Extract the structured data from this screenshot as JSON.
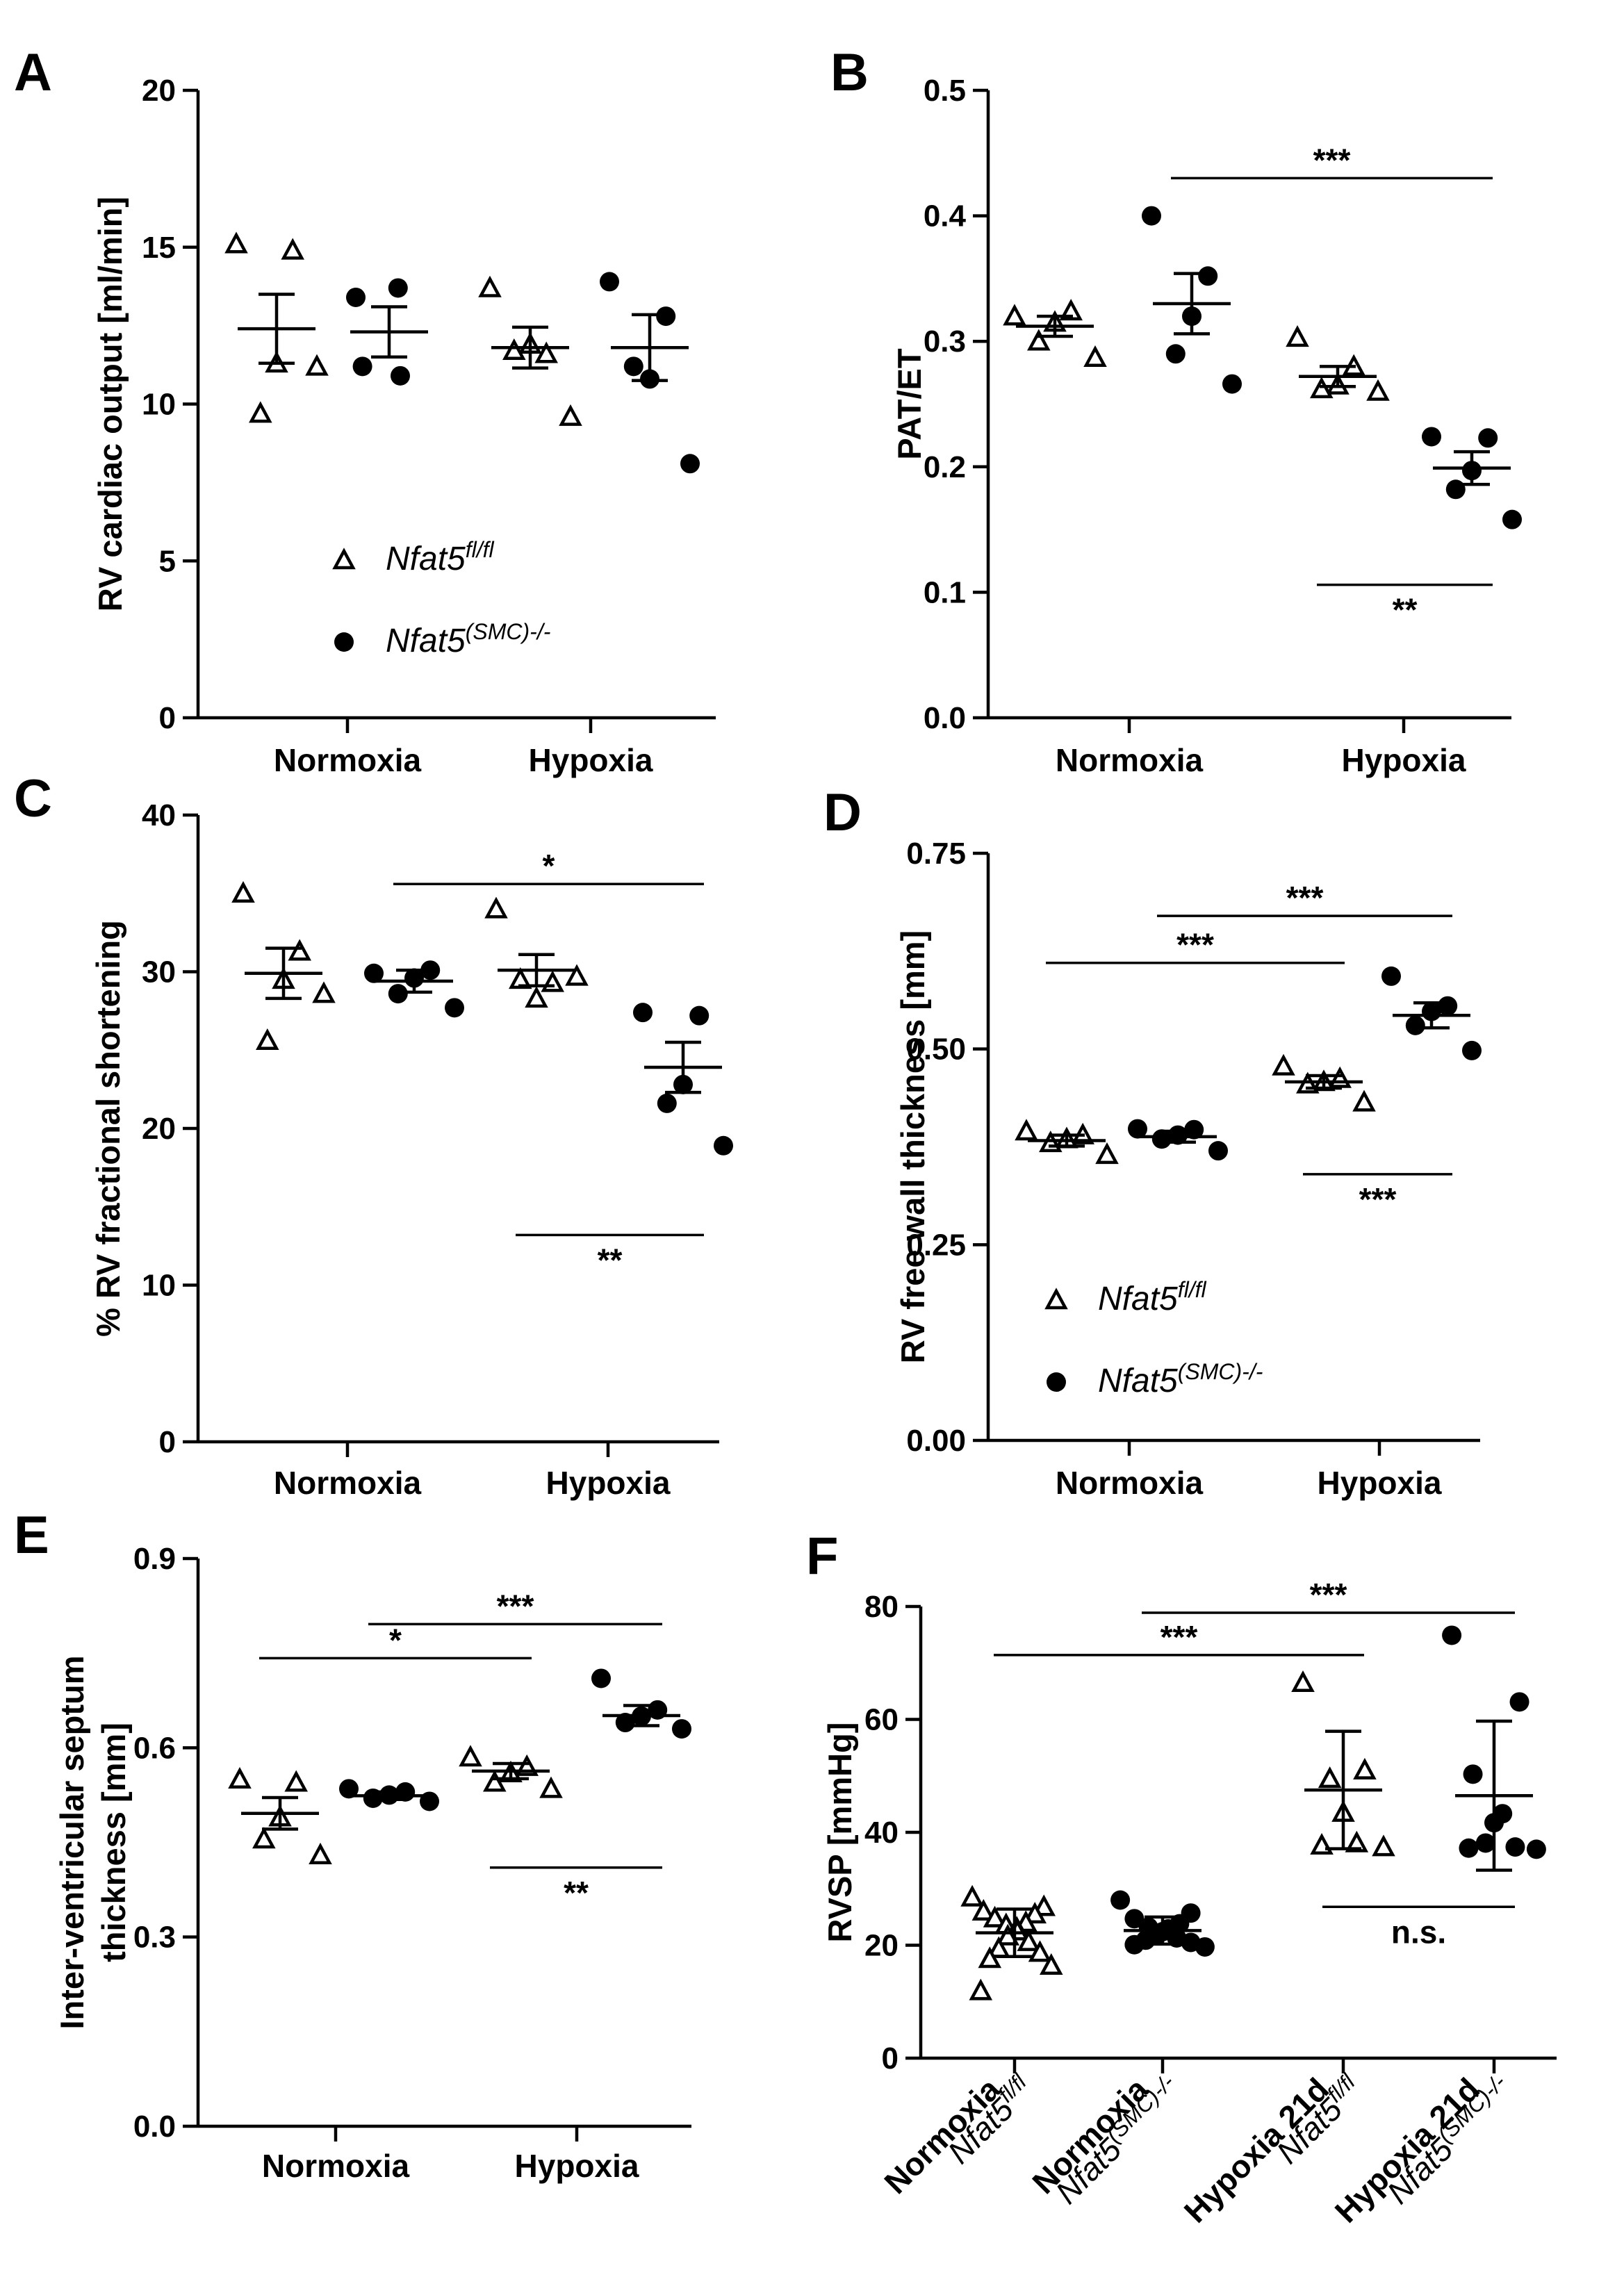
{
  "legend": {
    "group_a": "Nfat5",
    "group_a_sup": "fl/fl",
    "group_b": "Nfat5",
    "group_b_sup": "(SMC)-/-"
  },
  "chart_data": [
    {
      "type": "scatter",
      "panel": "A",
      "ylabel": "RV cardiac output [ml/min]",
      "ylim": [
        0,
        20
      ],
      "yticks": [
        "0",
        "5",
        "10",
        "15",
        "20"
      ],
      "categories": [
        "Normoxia",
        "Hypoxia"
      ],
      "groups": [
        {
          "name": "Nfat5 fl/fl",
          "condition": "Normoxia",
          "mean": 12.4,
          "sem": 1.1,
          "points": [
            15.1,
            14.9,
            11.3,
            9.7,
            11.2
          ]
        },
        {
          "name": "Nfat5 (SMC)-/-",
          "condition": "Normoxia",
          "mean": 12.3,
          "sem": 0.8,
          "points": [
            13.4,
            13.7,
            10.9,
            11.2
          ]
        },
        {
          "name": "Nfat5 fl/fl",
          "condition": "Hypoxia",
          "mean": 11.8,
          "sem": 0.65,
          "points": [
            13.7,
            11.6,
            11.9,
            11.7,
            9.6
          ]
        },
        {
          "name": "Nfat5 (SMC)-/-",
          "condition": "Hypoxia",
          "mean": 11.8,
          "sem": 1.05,
          "points": [
            13.9,
            12.8,
            10.8,
            11.2,
            8.1
          ]
        }
      ],
      "significance": []
    },
    {
      "type": "scatter",
      "panel": "B",
      "ylabel": "PAT/ET",
      "ylim": [
        0,
        0.5
      ],
      "yticks": [
        "0.0",
        "0.1",
        "0.2",
        "0.3",
        "0.4",
        "0.5"
      ],
      "categories": [
        "Normoxia",
        "Hypoxia"
      ],
      "groups": [
        {
          "name": "Nfat5 fl/fl",
          "condition": "Normoxia",
          "mean": 0.312,
          "sem": 0.008,
          "points": [
            0.32,
            0.324,
            0.315,
            0.3,
            0.287
          ]
        },
        {
          "name": "Nfat5 (SMC)-/-",
          "condition": "Normoxia",
          "mean": 0.33,
          "sem": 0.024,
          "points": [
            0.4,
            0.352,
            0.32,
            0.29,
            0.266
          ]
        },
        {
          "name": "Nfat5 fl/fl",
          "condition": "Hypoxia",
          "mean": 0.272,
          "sem": 0.008,
          "points": [
            0.303,
            0.28,
            0.265,
            0.262,
            0.26
          ]
        },
        {
          "name": "Nfat5 (SMC)-/-",
          "condition": "Hypoxia",
          "mean": 0.199,
          "sem": 0.013,
          "points": [
            0.224,
            0.223,
            0.197,
            0.182,
            0.158
          ]
        }
      ],
      "significance": [
        {
          "label": "***",
          "from": 1,
          "to": 3,
          "y": 0.43,
          "label_pos": "above"
        },
        {
          "label": "**",
          "from": 2,
          "to": 3,
          "y": 0.106,
          "label_pos": "below"
        }
      ]
    },
    {
      "type": "scatter",
      "panel": "C",
      "ylabel": "% RV fractional shortening",
      "ylim": [
        0,
        40
      ],
      "yticks": [
        "0",
        "10",
        "20",
        "30",
        "40"
      ],
      "categories": [
        "Normoxia",
        "Hypoxia"
      ],
      "groups": [
        {
          "name": "Nfat5 fl/fl",
          "condition": "Normoxia",
          "mean": 29.9,
          "sem": 1.6,
          "points": [
            35.0,
            31.3,
            29.5,
            25.6,
            28.6
          ]
        },
        {
          "name": "Nfat5 (SMC)-/-",
          "condition": "Normoxia",
          "mean": 29.4,
          "sem": 0.7,
          "points": [
            29.9,
            30.1,
            29.6,
            28.6,
            27.7
          ]
        },
        {
          "name": "Nfat5 fl/fl",
          "condition": "Hypoxia",
          "mean": 30.1,
          "sem": 1.0,
          "points": [
            34.0,
            29.3,
            28.3,
            29.5,
            29.7
          ]
        },
        {
          "name": "Nfat5 (SMC)-/-",
          "condition": "Hypoxia",
          "mean": 23.9,
          "sem": 1.6,
          "points": [
            27.4,
            27.2,
            22.8,
            21.6,
            18.9
          ]
        }
      ],
      "significance": [
        {
          "label": "*",
          "from": 1,
          "to": 3,
          "y": 35.6,
          "label_pos": "above"
        },
        {
          "label": "**",
          "from": 2,
          "to": 3,
          "y": 13.2,
          "label_pos": "below"
        }
      ]
    },
    {
      "type": "scatter",
      "panel": "D",
      "ylabel": "RV free wall thickness [mm]",
      "ylim": [
        0,
        0.75
      ],
      "yticks": [
        "0.00",
        "0.25",
        "0.50",
        "0.75"
      ],
      "categories": [
        "Normoxia",
        "Hypoxia"
      ],
      "groups": [
        {
          "name": "Nfat5 fl/fl",
          "condition": "Normoxia",
          "mean": 0.383,
          "sem": 0.007,
          "points": [
            0.395,
            0.39,
            0.385,
            0.38,
            0.365
          ]
        },
        {
          "name": "Nfat5 (SMC)-/-",
          "condition": "Normoxia",
          "mean": 0.388,
          "sem": 0.007,
          "points": [
            0.398,
            0.397,
            0.39,
            0.385,
            0.37
          ]
        },
        {
          "name": "Nfat5 fl/fl",
          "condition": "Hypoxia",
          "mean": 0.458,
          "sem": 0.008,
          "points": [
            0.478,
            0.462,
            0.458,
            0.455,
            0.432
          ]
        },
        {
          "name": "Nfat5 (SMC)-/-",
          "condition": "Hypoxia",
          "mean": 0.543,
          "sem": 0.016,
          "points": [
            0.593,
            0.555,
            0.548,
            0.53,
            0.498
          ]
        }
      ],
      "significance": [
        {
          "label": "***",
          "from": 1,
          "to": 3,
          "y": 0.67,
          "label_pos": "above"
        },
        {
          "label": "***",
          "from": 0,
          "to": 2,
          "y": 0.61,
          "label_pos": "above"
        },
        {
          "label": "***",
          "from": 2,
          "to": 3,
          "y": 0.34,
          "label_pos": "below"
        }
      ]
    },
    {
      "type": "scatter",
      "panel": "E",
      "ylabel": "Inter-ventricular septum thickness [mm]",
      "ylabel_lines": [
        "Inter-ventricular septum",
        "thickness [mm]"
      ],
      "ylim": [
        0,
        0.9
      ],
      "yticks": [
        "0.0",
        "0.3",
        "0.6",
        "0.9"
      ],
      "categories": [
        "Normoxia",
        "Hypoxia"
      ],
      "groups": [
        {
          "name": "Nfat5 fl/fl",
          "condition": "Normoxia",
          "mean": 0.496,
          "sem": 0.025,
          "points": [
            0.55,
            0.545,
            0.49,
            0.455,
            0.43
          ]
        },
        {
          "name": "Nfat5 (SMC)-/-",
          "condition": "Normoxia",
          "mean": 0.524,
          "sem": 0.006,
          "points": [
            0.535,
            0.53,
            0.525,
            0.52,
            0.515
          ]
        },
        {
          "name": "Nfat5 fl/fl",
          "condition": "Hypoxia",
          "mean": 0.563,
          "sem": 0.012,
          "points": [
            0.585,
            0.57,
            0.56,
            0.545,
            0.535
          ]
        },
        {
          "name": "Nfat5 (SMC)-/-",
          "condition": "Hypoxia",
          "mean": 0.651,
          "sem": 0.016,
          "points": [
            0.71,
            0.66,
            0.65,
            0.64,
            0.63
          ]
        }
      ],
      "significance": [
        {
          "label": "***",
          "from": 1,
          "to": 3,
          "y": 0.796,
          "label_pos": "above"
        },
        {
          "label": "*",
          "from": 0,
          "to": 2,
          "y": 0.742,
          "label_pos": "above"
        },
        {
          "label": "**",
          "from": 2,
          "to": 3,
          "y": 0.41,
          "label_pos": "below"
        }
      ]
    },
    {
      "type": "scatter",
      "panel": "F",
      "ylabel": "RVSP [mmHg]",
      "ylim": [
        0,
        80
      ],
      "yticks": [
        "0",
        "20",
        "40",
        "60",
        "80"
      ],
      "categories": [
        "Normoxia",
        "Normoxia",
        "Hypoxia 21d",
        "Hypoxia 21d"
      ],
      "category_sub": [
        "Nfat5",
        "Nfat5",
        "Nfat5",
        "Nfat5"
      ],
      "category_sup": [
        "fl/fl",
        "(SMC)-/-",
        "fl/fl",
        "(SMC)-/-"
      ],
      "error_type": "SD",
      "groups": [
        {
          "name": "Nfat5 fl/fl",
          "condition": "Normoxia",
          "mean": 22.2,
          "sd": 4.2,
          "points": [
            28.5,
            26.8,
            26.0,
            25.5,
            24.8,
            24.0,
            23.6,
            23.0,
            22.5,
            21.6,
            20.6,
            19.4,
            18.7,
            17.6,
            16.4,
            11.9
          ]
        },
        {
          "name": "Nfat5 (SMC)-/-",
          "condition": "Normoxia",
          "mean": 22.6,
          "sd": 2.4,
          "points": [
            28.0,
            25.7,
            24.7,
            23.8,
            23.2,
            22.9,
            22.4,
            21.8,
            21.3,
            20.9,
            20.5,
            20.1,
            19.7
          ]
        },
        {
          "name": "Nfat5 fl/fl",
          "condition": "Hypoxia 21d",
          "mean": 47.5,
          "sd": 10.4,
          "points": [
            66.5,
            51.0,
            49.5,
            43.5,
            38.1,
            37.7,
            37.4
          ]
        },
        {
          "name": "Nfat5 (SMC)-/-",
          "condition": "Hypoxia 21d",
          "mean": 46.5,
          "sd": 13.2,
          "points": [
            74.9,
            63.1,
            50.3,
            43.3,
            41.7,
            38.1,
            37.4,
            37.2,
            37.0
          ]
        }
      ],
      "significance": [
        {
          "label": "***",
          "from": 1,
          "to": 3,
          "y": 78.9,
          "label_pos": "above"
        },
        {
          "label": "***",
          "from": 0,
          "to": 2,
          "y": 71.4,
          "label_pos": "above"
        },
        {
          "label": "n.s.",
          "from": 2,
          "to": 3,
          "y": 26.8,
          "label_pos": "below"
        }
      ]
    }
  ]
}
